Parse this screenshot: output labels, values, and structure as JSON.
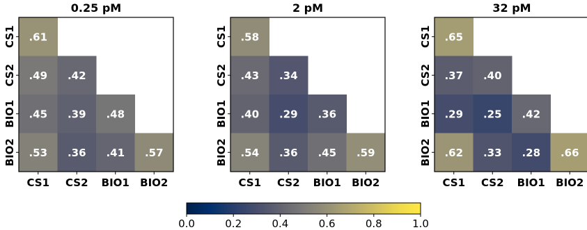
{
  "chart_data": {
    "type": "heatmap",
    "labels": [
      "CS1",
      "CS2",
      "BIO1",
      "BIO2"
    ],
    "colormap": "cividis",
    "vmin": 0.0,
    "vmax": 1.0,
    "colorbar": {
      "ticks": [
        0.0,
        0.2,
        0.4,
        0.6,
        0.8,
        1.0
      ],
      "tick_labels": [
        "0.0",
        "0.2",
        "0.4",
        "0.6",
        "0.8",
        "1.0"
      ],
      "placement": "bottom"
    },
    "panels": [
      {
        "title": "0.25 pM",
        "values": [
          [
            0.61
          ],
          [
            0.49,
            0.42
          ],
          [
            0.45,
            0.39,
            0.48
          ],
          [
            0.53,
            0.36,
            0.41,
            0.57
          ]
        ],
        "value_labels": [
          [
            ".61"
          ],
          [
            ".49",
            ".42"
          ],
          [
            ".45",
            ".39",
            ".48"
          ],
          [
            ".53",
            ".36",
            ".41",
            ".57"
          ]
        ]
      },
      {
        "title": "2 pM",
        "values": [
          [
            0.58
          ],
          [
            0.43,
            0.34
          ],
          [
            0.4,
            0.29,
            0.36
          ],
          [
            0.54,
            0.36,
            0.45,
            0.59
          ]
        ],
        "value_labels": [
          [
            ".58"
          ],
          [
            ".43",
            ".34"
          ],
          [
            ".40",
            ".29",
            ".36"
          ],
          [
            ".54",
            ".36",
            ".45",
            ".59"
          ]
        ]
      },
      {
        "title": "32 pM",
        "values": [
          [
            0.65
          ],
          [
            0.37,
            0.4
          ],
          [
            0.29,
            0.25,
            0.42
          ],
          [
            0.62,
            0.33,
            0.28,
            0.66
          ]
        ],
        "value_labels": [
          [
            ".65"
          ],
          [
            ".37",
            ".40"
          ],
          [
            ".29",
            ".25",
            ".42"
          ],
          [
            ".62",
            ".33",
            ".28",
            ".66"
          ]
        ]
      }
    ]
  }
}
